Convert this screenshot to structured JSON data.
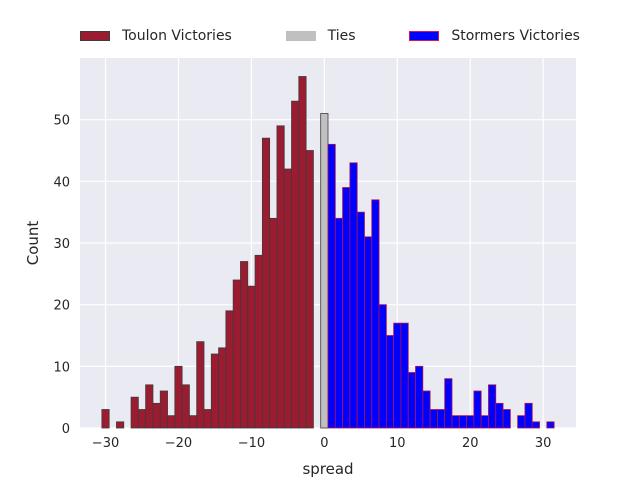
{
  "chart_data": {
    "type": "bar",
    "xlabel": "spread",
    "ylabel": "Count",
    "xlim": [
      -33.5,
      34.5
    ],
    "ylim": [
      0,
      60
    ],
    "xticks": [
      -30,
      -20,
      -10,
      0,
      10,
      20,
      30
    ],
    "yticks": [
      0,
      10,
      20,
      30,
      40,
      50
    ],
    "grid": true,
    "legend_position": "top",
    "series": [
      {
        "name": "Toulon Victories",
        "color": "#9b1b30",
        "edgecolor": "#3c3c3c",
        "bins": [
          -30,
          -29,
          -28,
          -27,
          -26,
          -25,
          -24,
          -23,
          -22,
          -21,
          -20,
          -19,
          -18,
          -17,
          -16,
          -15,
          -14,
          -13,
          -12,
          -11,
          -10,
          -9,
          -8,
          -7,
          -6,
          -5,
          -4,
          -3,
          -2,
          -1
        ],
        "values": [
          3,
          0,
          1,
          0,
          5,
          3,
          7,
          4,
          6,
          2,
          10,
          7,
          2,
          14,
          3,
          12,
          13,
          19,
          24,
          27,
          23,
          28,
          47,
          34,
          49,
          42,
          53,
          57,
          45,
          0
        ]
      },
      {
        "name": "Ties",
        "color": "#c0c0c0",
        "edgecolor": "#3c3c3c",
        "bins": [
          0
        ],
        "values": [
          51
        ]
      },
      {
        "name": "Stormers Victories",
        "color": "#0000ff",
        "edgecolor": "#b0124e",
        "bins": [
          1,
          2,
          3,
          4,
          5,
          6,
          7,
          8,
          9,
          10,
          11,
          12,
          13,
          14,
          15,
          16,
          17,
          18,
          19,
          20,
          21,
          22,
          23,
          24,
          25,
          26,
          27,
          28,
          29,
          30,
          31
        ],
        "values": [
          46,
          34,
          39,
          43,
          35,
          31,
          37,
          20,
          15,
          17,
          17,
          9,
          10,
          6,
          3,
          3,
          8,
          2,
          2,
          2,
          6,
          2,
          7,
          4,
          3,
          0,
          2,
          4,
          1,
          0,
          1
        ]
      }
    ]
  }
}
